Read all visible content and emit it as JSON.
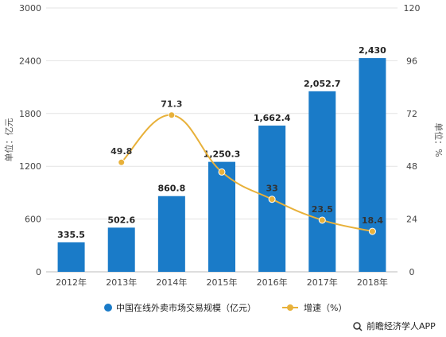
{
  "chart_data": {
    "type": "bar",
    "categories": [
      "2012年",
      "2013年",
      "2014年",
      "2015年",
      "2016年",
      "2017年",
      "2018年"
    ],
    "series": [
      {
        "name": "中国在线外卖市场交易规模（亿元）",
        "type": "bar",
        "axis": "left",
        "values": [
          335.5,
          502.6,
          860.8,
          1250.3,
          1662.4,
          2052.7,
          2430
        ],
        "labels": [
          "335.5",
          "502.6",
          "860.8",
          "1,250.3",
          "1,662.4",
          "2,052.7",
          "2,430"
        ],
        "color": "#1a7bc8"
      },
      {
        "name": "增速（%）",
        "type": "line",
        "axis": "right",
        "values": [
          null,
          49.8,
          71.3,
          45.4,
          33,
          23.5,
          18.4
        ],
        "labels": [
          "",
          "49.8",
          "71.3",
          "",
          "33",
          "23.5",
          "18.4"
        ],
        "color": "#e8b13a"
      }
    ],
    "ylabel": "单位：亿元",
    "y2label": "单位：%",
    "ylim": [
      0,
      3000
    ],
    "y2lim": [
      0,
      120
    ],
    "yticks": [
      "0",
      "600",
      "1200",
      "1800",
      "2400",
      "3000"
    ],
    "y2ticks": [
      "0",
      "24",
      "48",
      "72",
      "96",
      "120"
    ],
    "grid": true,
    "legend_position": "bottom"
  },
  "source": "前瞻经济学人APP",
  "source_icon": "search-icon"
}
